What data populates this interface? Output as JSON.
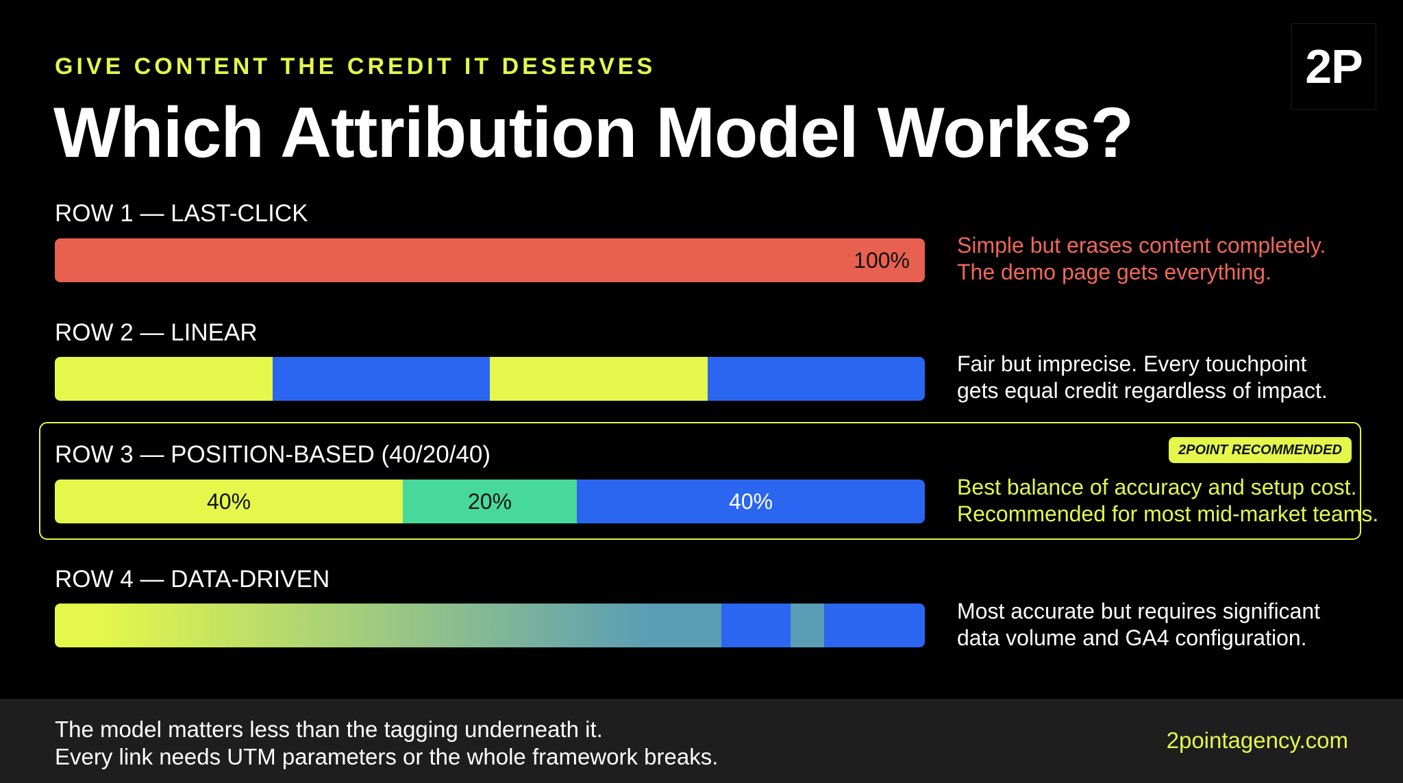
{
  "header": {
    "eyebrow": "GIVE CONTENT THE CREDIT IT DESERVES",
    "title": "Which Attribution Model Works?",
    "logo_text": "2P"
  },
  "colors": {
    "accent_yellow": "#e4f74a",
    "red": "#e8604f",
    "blue": "#2a66f0",
    "green": "#47d99c",
    "teal": "#5a9db5",
    "footer_bg": "#1e1e1e"
  },
  "rows": [
    {
      "label": "ROW 1 — LAST-CLICK",
      "segments": [
        {
          "share": 1.0,
          "color": "#e8604f",
          "text": "100%"
        }
      ],
      "description": [
        "Simple but erases content completely.",
        "The demo page gets everything."
      ],
      "description_color": "#f0685a"
    },
    {
      "label": "ROW 2 — LINEAR",
      "segments": [
        {
          "share": 0.25,
          "color": "#e4f74a",
          "text": ""
        },
        {
          "share": 0.25,
          "color": "#2a66f0",
          "text": ""
        },
        {
          "share": 0.25,
          "color": "#e4f74a",
          "text": ""
        },
        {
          "share": 0.25,
          "color": "#2a66f0",
          "text": ""
        }
      ],
      "description": [
        "Fair but imprecise. Every touchpoint",
        "gets equal credit regardless of impact."
      ],
      "description_color": "#ffffff"
    },
    {
      "label": "ROW 3 — POSITION-BASED (40/20/40)",
      "badge": "2POINT RECOMMENDED",
      "segments": [
        {
          "share": 0.4,
          "color": "#e4f74a",
          "text": "40%"
        },
        {
          "share": 0.2,
          "color": "#47d99c",
          "text": "20%"
        },
        {
          "share": 0.4,
          "color": "#2a66f0",
          "text": "40%"
        }
      ],
      "description": [
        "Best balance of accuracy and setup cost.",
        "Recommended for most mid-market teams."
      ],
      "description_color": "#e4f74a"
    },
    {
      "label": "ROW 4 — DATA-DRIVEN",
      "segments": [
        {
          "share": 0.686,
          "gradient": [
            "#e4f74a",
            "#5a9db5"
          ],
          "text": ""
        },
        {
          "share": 0.08,
          "color": "#5a9db5",
          "text": ""
        },
        {
          "share": 0.08,
          "color": "#2a66f0",
          "text": ""
        },
        {
          "share": 0.038,
          "color": "#5a9db5",
          "text": ""
        },
        {
          "share": 0.116,
          "color": "#2a66f0",
          "text": ""
        }
      ],
      "description": [
        "Most accurate but requires significant",
        "data volume and GA4 configuration."
      ],
      "description_color": "#ffffff"
    }
  ],
  "footer": {
    "line1": "The model matters less than the tagging underneath it.",
    "line2": "Every link needs UTM parameters or the whole framework breaks.",
    "link": "2pointagency.com"
  }
}
